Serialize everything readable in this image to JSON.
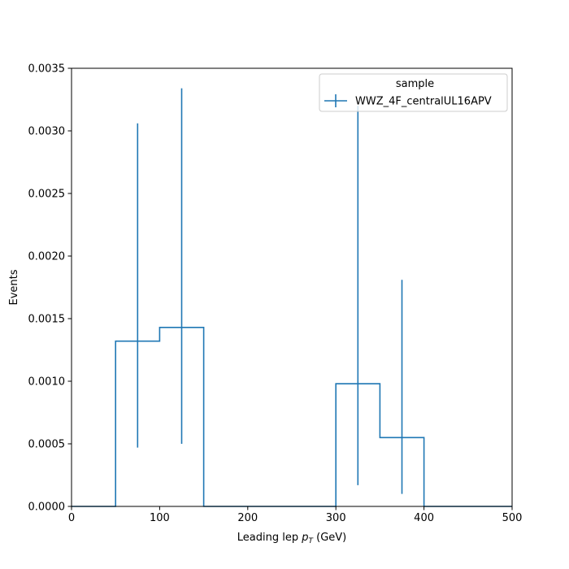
{
  "chart_data": {
    "type": "histogram",
    "xlabel": "Leading lep",
    "xlabel_symbol": "p",
    "xlabel_subscript": "T",
    "xlabel_unit": "(GeV)",
    "ylabel": "Events",
    "xlim": [
      0,
      500
    ],
    "ylim": [
      0,
      0.0035
    ],
    "x_ticks": [
      0,
      100,
      200,
      300,
      400,
      500
    ],
    "x_tick_labels": [
      "0",
      "100",
      "200",
      "300",
      "400",
      "500"
    ],
    "y_ticks": [
      0,
      0.0005,
      0.001,
      0.0015,
      0.002,
      0.0025,
      0.003,
      0.0035
    ],
    "y_tick_labels": [
      "0.0000",
      "0.0005",
      "0.0010",
      "0.0015",
      "0.0020",
      "0.0025",
      "0.0030",
      "0.0035"
    ],
    "grid": false,
    "legend": {
      "title": "sample",
      "placement": "top-right"
    },
    "series": [
      {
        "name": "WWZ_4F_centralUL16APV",
        "color": "#1f77b4",
        "bin_edges": [
          0,
          50,
          100,
          150,
          200,
          250,
          300,
          350,
          400,
          450,
          500
        ],
        "values": [
          0,
          0.00132,
          0.00143,
          0,
          0,
          0,
          0.00098,
          0.00055,
          0,
          0
        ],
        "errorbars": [
          {
            "x": 75,
            "low": 0.00047,
            "high": 0.00306
          },
          {
            "x": 125,
            "low": 0.0005,
            "high": 0.00334
          },
          {
            "x": 325,
            "low": 0.00017,
            "high": 0.0032
          },
          {
            "x": 375,
            "low": 0.0001,
            "high": 0.00181
          }
        ]
      }
    ]
  }
}
